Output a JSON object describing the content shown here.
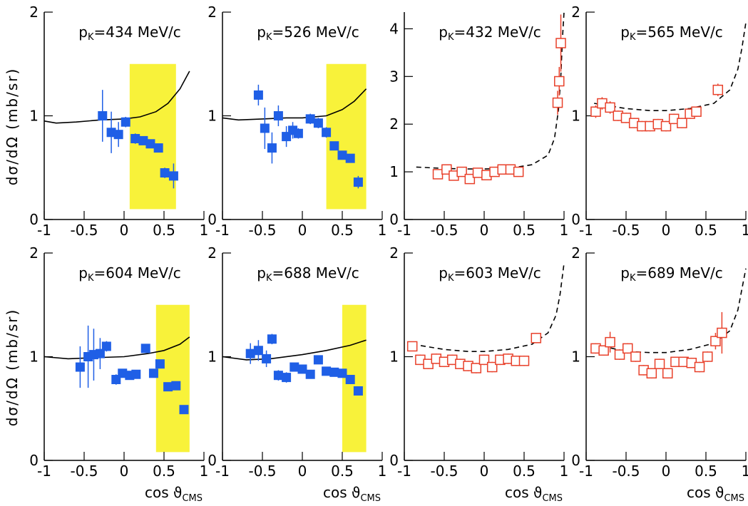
{
  "chart_data": [
    {
      "type": "scatter",
      "title": [
        "p",
        "K",
        "=434 MeV/c"
      ],
      "ylabel": "dσ/dΩ  (mb/sr)",
      "xlim": [
        -1,
        1
      ],
      "xticks": [
        -1,
        -0.5,
        0,
        0.5,
        1
      ],
      "ylim": [
        0,
        2
      ],
      "yticks": [
        0,
        1,
        2
      ],
      "marker": "filled-square",
      "color": "#1f5fe6",
      "x": [
        -0.27,
        -0.16,
        -0.07,
        0.02,
        0.14,
        0.24,
        0.33,
        0.43,
        0.51,
        0.62
      ],
      "values": [
        1.0,
        0.84,
        0.82,
        0.94,
        0.78,
        0.76,
        0.73,
        0.69,
        0.45,
        0.42
      ],
      "errors": [
        0.25,
        0.2,
        0.12,
        0.05,
        0.05,
        0.04,
        0.04,
        0.04,
        0.05,
        0.12
      ],
      "band": {
        "x": [
          0.07,
          0.65
        ],
        "y": [
          0.1,
          1.5
        ],
        "color": "#f8f23a"
      },
      "curve": {
        "x": [
          -1,
          -0.85,
          -0.6,
          -0.3,
          0,
          0.2,
          0.4,
          0.55,
          0.7,
          0.82
        ],
        "values": [
          0.95,
          0.93,
          0.94,
          0.96,
          0.97,
          0.99,
          1.04,
          1.12,
          1.26,
          1.43
        ],
        "dashed": false
      }
    },
    {
      "type": "scatter",
      "title": [
        "p",
        "K",
        "=526 MeV/c"
      ],
      "xlim": [
        -1,
        1
      ],
      "xticks": [
        -1,
        -0.5,
        0,
        0.5,
        1
      ],
      "ylim": [
        0,
        2
      ],
      "yticks": [
        0,
        1,
        2
      ],
      "marker": "filled-square",
      "color": "#1f5fe6",
      "x": [
        -0.55,
        -0.47,
        -0.38,
        -0.3,
        -0.2,
        -0.12,
        -0.05,
        0.1,
        0.2,
        0.3,
        0.4,
        0.5,
        0.6,
        0.7
      ],
      "values": [
        1.2,
        0.88,
        0.69,
        1.0,
        0.8,
        0.86,
        0.83,
        0.97,
        0.93,
        0.84,
        0.71,
        0.62,
        0.59,
        0.36
      ],
      "errors": [
        0.1,
        0.2,
        0.15,
        0.1,
        0.1,
        0.08,
        0.05,
        0.05,
        0.05,
        0.05,
        0.04,
        0.04,
        0.04,
        0.06
      ],
      "band": {
        "x": [
          0.3,
          0.8
        ],
        "y": [
          0.1,
          1.5
        ],
        "color": "#f8f23a"
      },
      "curve": {
        "x": [
          -1,
          -0.8,
          -0.5,
          -0.2,
          0,
          0.3,
          0.5,
          0.65,
          0.8
        ],
        "values": [
          0.98,
          0.96,
          0.97,
          0.98,
          0.98,
          1.0,
          1.06,
          1.14,
          1.26
        ],
        "dashed": false
      }
    },
    {
      "type": "scatter",
      "title": [
        "p",
        "K",
        "=432 MeV/c"
      ],
      "xlim": [
        -1,
        1
      ],
      "xticks": [
        -1,
        -0.5,
        0,
        0.5,
        1
      ],
      "ylim": [
        0,
        4.35
      ],
      "yticks": [
        0,
        1,
        2,
        3,
        4
      ],
      "marker": "open-square",
      "color": "#e8402a",
      "x": [
        -0.58,
        -0.47,
        -0.38,
        -0.28,
        -0.18,
        -0.08,
        0.03,
        0.13,
        0.23,
        0.33,
        0.43,
        0.92,
        0.94,
        0.96
      ],
      "values": [
        0.95,
        1.05,
        0.92,
        1.0,
        0.85,
        0.98,
        0.93,
        1.0,
        1.05,
        1.05,
        1.0,
        2.45,
        2.9,
        3.7
      ],
      "errors": [
        0.1,
        0.1,
        0.1,
        0.1,
        0.1,
        0.1,
        0.1,
        0.1,
        0.1,
        0.1,
        0.1,
        0.25,
        0.3,
        0.6
      ],
      "curve": {
        "x": [
          -0.85,
          -0.5,
          -0.2,
          0,
          0.3,
          0.6,
          0.8,
          0.88,
          0.93,
          0.96,
          0.98,
          1
        ],
        "values": [
          1.1,
          1.07,
          1.06,
          1.06,
          1.07,
          1.15,
          1.35,
          1.7,
          2.3,
          3.0,
          3.8,
          4.35
        ],
        "dashed": true
      }
    },
    {
      "type": "scatter",
      "title": [
        "p",
        "K",
        "=565 MeV/c"
      ],
      "xlim": [
        -1,
        1
      ],
      "xticks": [
        -1,
        -0.5,
        0,
        0.5,
        1
      ],
      "ylim": [
        0,
        2
      ],
      "yticks": [
        0,
        1,
        2
      ],
      "marker": "open-square",
      "color": "#e8402a",
      "x": [
        -0.88,
        -0.8,
        -0.7,
        -0.6,
        -0.5,
        -0.4,
        -0.3,
        -0.2,
        -0.1,
        0,
        0.1,
        0.2,
        0.3,
        0.38,
        0.65
      ],
      "values": [
        1.04,
        1.12,
        1.08,
        1.0,
        0.98,
        0.93,
        0.9,
        0.9,
        0.92,
        0.9,
        0.97,
        0.93,
        1.02,
        1.04,
        1.25
      ],
      "errors": [
        0.06,
        0.06,
        0.06,
        0.05,
        0.05,
        0.05,
        0.05,
        0.05,
        0.05,
        0.05,
        0.05,
        0.05,
        0.05,
        0.05,
        0.06
      ],
      "curve": {
        "x": [
          -0.9,
          -0.5,
          -0.2,
          0,
          0.3,
          0.6,
          0.8,
          0.9,
          0.95,
          1
        ],
        "values": [
          1.12,
          1.07,
          1.05,
          1.05,
          1.07,
          1.12,
          1.25,
          1.45,
          1.65,
          1.9
        ],
        "dashed": true
      }
    },
    {
      "type": "scatter",
      "title": [
        "p",
        "K",
        "=604 MeV/c"
      ],
      "ylabel": "dσ/dΩ  (mb/sr)",
      "xlabel": [
        "cos ϑ",
        "CMS"
      ],
      "xlim": [
        -1,
        1
      ],
      "xticks": [
        -1,
        -0.5,
        0,
        0.5,
        1
      ],
      "ylim": [
        0,
        2
      ],
      "yticks": [
        0,
        1,
        2
      ],
      "marker": "filled-square",
      "color": "#1f5fe6",
      "x": [
        -0.55,
        -0.45,
        -0.38,
        -0.3,
        -0.22,
        -0.1,
        -0.02,
        0.07,
        0.15,
        0.27,
        0.37,
        0.45,
        0.55,
        0.65,
        0.75
      ],
      "values": [
        0.9,
        1.0,
        1.02,
        1.03,
        1.1,
        0.78,
        0.84,
        0.82,
        0.83,
        1.08,
        0.84,
        0.93,
        0.71,
        0.72,
        0.49
      ],
      "errors": [
        0.2,
        0.3,
        0.25,
        0.15,
        0.05,
        0.05,
        0.04,
        0.04,
        0.04,
        0.04,
        0.04,
        0.04,
        0.04,
        0.04,
        0.04
      ],
      "band": {
        "x": [
          0.4,
          0.82
        ],
        "y": [
          0.08,
          1.5
        ],
        "color": "#f8f23a"
      },
      "curve": {
        "x": [
          -1,
          -0.7,
          -0.4,
          0,
          0.3,
          0.5,
          0.7,
          0.82
        ],
        "values": [
          1.0,
          0.98,
          0.99,
          1.0,
          1.03,
          1.06,
          1.12,
          1.19
        ],
        "dashed": false
      }
    },
    {
      "type": "scatter",
      "title": [
        "p",
        "K",
        "=688 MeV/c"
      ],
      "xlabel": [
        "cos ϑ",
        "CMS"
      ],
      "xlim": [
        -1,
        1
      ],
      "xticks": [
        -1,
        -0.5,
        0,
        0.5,
        1
      ],
      "ylim": [
        0,
        2
      ],
      "yticks": [
        0,
        1,
        2
      ],
      "marker": "filled-square",
      "color": "#1f5fe6",
      "x": [
        -0.65,
        -0.55,
        -0.45,
        -0.38,
        -0.3,
        -0.2,
        -0.1,
        0,
        0.1,
        0.2,
        0.3,
        0.4,
        0.5,
        0.6,
        0.7
      ],
      "values": [
        1.03,
        1.06,
        0.98,
        1.17,
        0.82,
        0.8,
        0.9,
        0.88,
        0.83,
        0.97,
        0.86,
        0.85,
        0.84,
        0.78,
        0.67
      ],
      "errors": [
        0.1,
        0.1,
        0.08,
        0.05,
        0.05,
        0.05,
        0.04,
        0.04,
        0.04,
        0.04,
        0.04,
        0.04,
        0.04,
        0.04,
        0.04
      ],
      "band": {
        "x": [
          0.5,
          0.8
        ],
        "y": [
          0.08,
          1.5
        ],
        "color": "#f8f23a"
      },
      "curve": {
        "x": [
          -1,
          -0.7,
          -0.4,
          0,
          0.3,
          0.6,
          0.8
        ],
        "values": [
          1.0,
          0.97,
          0.98,
          1.02,
          1.06,
          1.11,
          1.16
        ],
        "dashed": false
      }
    },
    {
      "type": "scatter",
      "title": [
        "p",
        "K",
        "=603 MeV/c"
      ],
      "xlabel": [
        "cos ϑ",
        "CMS"
      ],
      "xlim": [
        -1,
        1
      ],
      "xticks": [
        -1,
        -0.5,
        0,
        0.5,
        1
      ],
      "ylim": [
        0,
        2
      ],
      "yticks": [
        0,
        1,
        2
      ],
      "marker": "open-square",
      "color": "#e8402a",
      "x": [
        -0.9,
        -0.8,
        -0.7,
        -0.6,
        -0.5,
        -0.4,
        -0.3,
        -0.2,
        -0.1,
        0,
        0.1,
        0.2,
        0.3,
        0.4,
        0.5,
        0.65
      ],
      "values": [
        1.1,
        0.97,
        0.93,
        0.98,
        0.95,
        0.97,
        0.93,
        0.91,
        0.89,
        0.97,
        0.9,
        0.97,
        0.98,
        0.96,
        0.96,
        1.18
      ],
      "errors": [
        0.04,
        0.05,
        0.05,
        0.05,
        0.05,
        0.05,
        0.05,
        0.05,
        0.05,
        0.05,
        0.05,
        0.05,
        0.05,
        0.05,
        0.05,
        0.05
      ],
      "curve": {
        "x": [
          -0.9,
          -0.5,
          -0.2,
          0,
          0.3,
          0.6,
          0.8,
          0.9,
          0.95,
          1
        ],
        "values": [
          1.12,
          1.07,
          1.05,
          1.05,
          1.07,
          1.12,
          1.23,
          1.4,
          1.6,
          1.9
        ],
        "dashed": true
      }
    },
    {
      "type": "scatter",
      "title": [
        "p",
        "K",
        "=689 MeV/c"
      ],
      "xlabel": [
        "cos ϑ",
        "CMS"
      ],
      "xlim": [
        -1,
        1
      ],
      "xticks": [
        -1,
        -0.5,
        0,
        0.5,
        1
      ],
      "ylim": [
        0,
        2
      ],
      "yticks": [
        0,
        1,
        2
      ],
      "marker": "open-square",
      "color": "#e8402a",
      "x": [
        -0.88,
        -0.78,
        -0.7,
        -0.58,
        -0.48,
        -0.38,
        -0.28,
        -0.18,
        -0.08,
        0.02,
        0.12,
        0.22,
        0.32,
        0.42,
        0.52,
        0.62,
        0.7
      ],
      "values": [
        1.08,
        1.06,
        1.14,
        1.02,
        1.08,
        1.0,
        0.87,
        0.84,
        0.93,
        0.84,
        0.95,
        0.95,
        0.94,
        0.9,
        1.0,
        1.15,
        1.23
      ],
      "errors": [
        0.05,
        0.05,
        0.1,
        0.05,
        0.05,
        0.05,
        0.05,
        0.05,
        0.05,
        0.05,
        0.05,
        0.05,
        0.05,
        0.05,
        0.05,
        0.08,
        0.2
      ],
      "curve": {
        "x": [
          -0.9,
          -0.5,
          -0.2,
          0,
          0.3,
          0.6,
          0.8,
          0.9,
          0.95,
          1
        ],
        "values": [
          1.12,
          1.05,
          1.04,
          1.04,
          1.07,
          1.13,
          1.25,
          1.45,
          1.65,
          1.85
        ],
        "dashed": true
      }
    }
  ]
}
